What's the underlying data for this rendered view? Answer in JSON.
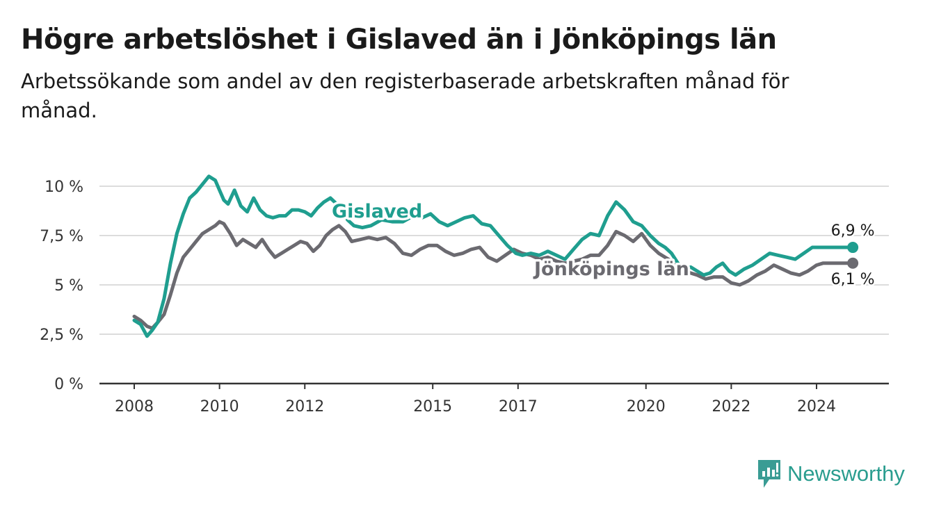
{
  "title": "Högre arbetslöshet i Gislaved än i Jönköpings län",
  "subtitle": "Arbetssökande som andel av den registerbaserade arbetskraften månad för månad.",
  "brand": {
    "name": "Newsworthy",
    "icon": "newsworthy-logo-icon",
    "color": "#3a9c94"
  },
  "chart_data": {
    "type": "line",
    "title": "Högre arbetslöshet i Gislaved än i Jönköpings län",
    "subtitle": "Arbetssökande som andel av den registerbaserade arbetskraften månad för månad.",
    "xlabel": "",
    "ylabel": "",
    "ylim": [
      0,
      10.5
    ],
    "y_ticks": [
      0,
      2.5,
      5,
      7.5,
      10
    ],
    "y_tick_labels": [
      "0 %",
      "2,5 %",
      "5 %",
      "7,5 %",
      "10 %"
    ],
    "x_ticks": [
      2008,
      2010,
      2012,
      2015,
      2017,
      2020,
      2022,
      2024
    ],
    "x_tick_labels": [
      "2008",
      "2010",
      "2012",
      "2015",
      "2017",
      "2020",
      "2022",
      "2024"
    ],
    "grid": true,
    "legend": "inline labels",
    "series": [
      {
        "name": "Gislaved",
        "color": "#1f9e8f",
        "end_label": "6,9 %",
        "x": [
          2008.0,
          2008.15,
          2008.3,
          2008.42,
          2008.55,
          2008.7,
          2008.85,
          2009.0,
          2009.15,
          2009.3,
          2009.45,
          2009.6,
          2009.75,
          2009.9,
          2010.0,
          2010.1,
          2010.2,
          2010.35,
          2010.5,
          2010.65,
          2010.8,
          2010.95,
          2011.1,
          2011.25,
          2011.4,
          2011.55,
          2011.7,
          2011.85,
          2012.0,
          2012.15,
          2012.3,
          2012.45,
          2012.6,
          2012.75,
          2012.9,
          2013.0,
          2013.15,
          2013.35,
          2013.55,
          2013.8,
          2014.05,
          2014.3,
          2014.55,
          2014.75,
          2014.95,
          2015.15,
          2015.35,
          2015.55,
          2015.75,
          2015.95,
          2016.15,
          2016.35,
          2016.55,
          2016.75,
          2016.95,
          2017.1,
          2017.3,
          2017.5,
          2017.7,
          2017.9,
          2018.1,
          2018.3,
          2018.5,
          2018.7,
          2018.9,
          2019.1,
          2019.3,
          2019.5,
          2019.7,
          2019.9,
          2020.1,
          2020.3,
          2020.45,
          2020.6,
          2020.75,
          2020.9,
          2021.05,
          2021.2,
          2021.35,
          2021.5,
          2021.65,
          2021.8,
          2021.95,
          2022.1,
          2022.3,
          2022.5,
          2022.7,
          2022.9,
          2023.1,
          2023.3,
          2023.5,
          2023.7,
          2023.9,
          2024.0,
          2024.15,
          2024.3,
          2024.5,
          2024.7,
          2024.85
        ],
        "values": [
          3.2,
          3.0,
          2.4,
          2.7,
          3.1,
          4.3,
          6.1,
          7.6,
          8.6,
          9.4,
          9.7,
          10.1,
          10.5,
          10.3,
          9.8,
          9.3,
          9.1,
          9.8,
          9.0,
          8.7,
          9.4,
          8.8,
          8.5,
          8.4,
          8.5,
          8.5,
          8.8,
          8.8,
          8.7,
          8.5,
          8.9,
          9.2,
          9.4,
          9.1,
          8.8,
          8.3,
          8.0,
          7.9,
          8.0,
          8.3,
          8.2,
          8.2,
          8.5,
          8.4,
          8.6,
          8.2,
          8.0,
          8.2,
          8.4,
          8.5,
          8.1,
          8.0,
          7.5,
          7.0,
          6.6,
          6.5,
          6.6,
          6.5,
          6.7,
          6.5,
          6.3,
          6.8,
          7.3,
          7.6,
          7.5,
          8.5,
          9.2,
          8.8,
          8.2,
          8.0,
          7.5,
          7.1,
          6.9,
          6.6,
          6.1,
          5.8,
          5.9,
          5.7,
          5.5,
          5.6,
          5.9,
          6.1,
          5.7,
          5.5,
          5.8,
          6.0,
          6.3,
          6.6,
          6.5,
          6.4,
          6.3,
          6.6,
          6.9,
          6.9,
          6.9,
          6.9,
          6.9,
          6.9,
          6.9
        ]
      },
      {
        "name": "Jönköpings län",
        "color": "#6b6a70",
        "end_label": "6,1 %",
        "x": [
          2008.0,
          2008.15,
          2008.3,
          2008.42,
          2008.55,
          2008.7,
          2008.85,
          2009.0,
          2009.15,
          2009.3,
          2009.45,
          2009.6,
          2009.75,
          2009.9,
          2010.0,
          2010.1,
          2010.25,
          2010.4,
          2010.55,
          2010.7,
          2010.85,
          2011.0,
          2011.15,
          2011.3,
          2011.45,
          2011.6,
          2011.75,
          2011.9,
          2012.05,
          2012.2,
          2012.35,
          2012.5,
          2012.65,
          2012.8,
          2012.95,
          2013.1,
          2013.3,
          2013.5,
          2013.7,
          2013.9,
          2014.1,
          2014.3,
          2014.5,
          2014.7,
          2014.9,
          2015.1,
          2015.3,
          2015.5,
          2015.7,
          2015.9,
          2016.1,
          2016.3,
          2016.5,
          2016.7,
          2016.9,
          2017.1,
          2017.3,
          2017.5,
          2017.7,
          2017.9,
          2018.1,
          2018.3,
          2018.5,
          2018.7,
          2018.9,
          2019.1,
          2019.3,
          2019.5,
          2019.7,
          2019.9,
          2020.1,
          2020.3,
          2020.45,
          2020.6,
          2020.75,
          2020.9,
          2021.05,
          2021.2,
          2021.4,
          2021.6,
          2021.8,
          2022.0,
          2022.2,
          2022.4,
          2022.6,
          2022.8,
          2023.0,
          2023.2,
          2023.4,
          2023.6,
          2023.8,
          2024.0,
          2024.15,
          2024.3,
          2024.5,
          2024.7,
          2024.85
        ],
        "values": [
          3.4,
          3.2,
          2.9,
          2.8,
          3.1,
          3.5,
          4.5,
          5.6,
          6.4,
          6.8,
          7.2,
          7.6,
          7.8,
          8.0,
          8.2,
          8.1,
          7.6,
          7.0,
          7.3,
          7.1,
          6.9,
          7.3,
          6.8,
          6.4,
          6.6,
          6.8,
          7.0,
          7.2,
          7.1,
          6.7,
          7.0,
          7.5,
          7.8,
          8.0,
          7.7,
          7.2,
          7.3,
          7.4,
          7.3,
          7.4,
          7.1,
          6.6,
          6.5,
          6.8,
          7.0,
          7.0,
          6.7,
          6.5,
          6.6,
          6.8,
          6.9,
          6.4,
          6.2,
          6.5,
          6.8,
          6.6,
          6.5,
          6.3,
          6.4,
          6.2,
          6.1,
          6.2,
          6.3,
          6.5,
          6.5,
          7.0,
          7.7,
          7.5,
          7.2,
          7.6,
          7.0,
          6.6,
          6.4,
          6.2,
          5.8,
          5.7,
          5.6,
          5.5,
          5.3,
          5.4,
          5.4,
          5.1,
          5.0,
          5.2,
          5.5,
          5.7,
          6.0,
          5.8,
          5.6,
          5.5,
          5.7,
          6.0,
          6.1,
          6.1,
          6.1,
          6.1,
          6.1
        ]
      }
    ]
  }
}
